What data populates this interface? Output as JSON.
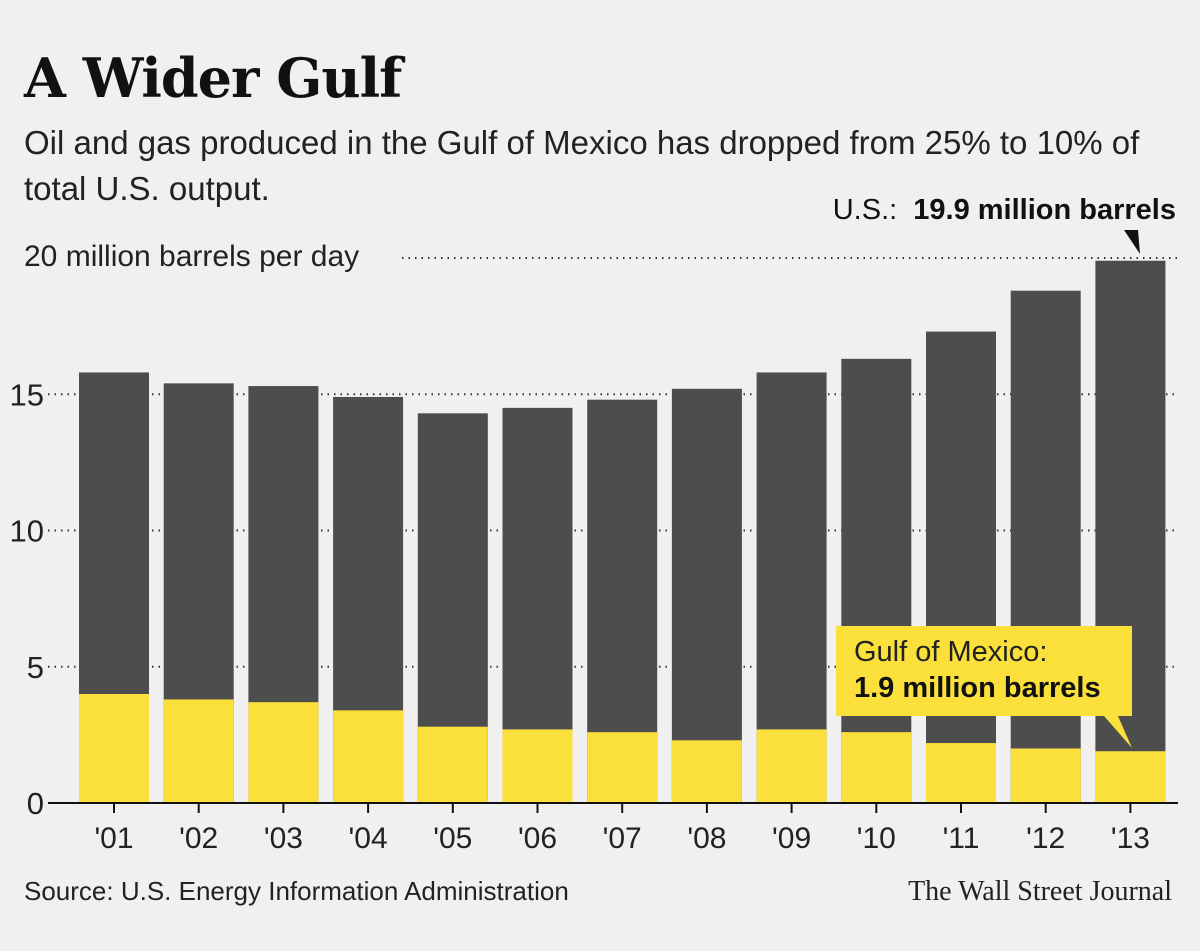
{
  "header": {
    "title": "A Wider Gulf",
    "subtitle": "Oil and gas produced in the Gulf of Mexico has dropped from 25% to 10% of total U.S. output."
  },
  "footer": {
    "source": "Source: U.S. Energy Information Administration",
    "credit": "The Wall Street Journal"
  },
  "colors": {
    "us_total": "#4d4d4d",
    "gulf": "#fbe03b",
    "background": "#f0f0f0",
    "text": "#111111"
  },
  "chart_data": {
    "type": "bar",
    "stacked_overlay": true,
    "title": "A Wider Gulf",
    "ylabel": "20 million barrels per day",
    "ylim": [
      0,
      20
    ],
    "yticks": [
      {
        "value": 0,
        "label": "0"
      },
      {
        "value": 5,
        "label": "5"
      },
      {
        "value": 10,
        "label": "10"
      },
      {
        "value": 15,
        "label": "15"
      },
      {
        "value": 20,
        "label": "20 million barrels per day"
      }
    ],
    "categories": [
      "'01",
      "'02",
      "'03",
      "'04",
      "'05",
      "'06",
      "'07",
      "'08",
      "'09",
      "'10",
      "'11",
      "'12",
      "'13"
    ],
    "series": [
      {
        "name": "U.S.",
        "values": [
          15.8,
          15.4,
          15.3,
          14.9,
          14.3,
          14.5,
          14.8,
          15.2,
          15.8,
          16.3,
          17.3,
          18.8,
          19.9
        ]
      },
      {
        "name": "Gulf of Mexico",
        "values": [
          4.0,
          3.8,
          3.7,
          3.4,
          2.8,
          2.7,
          2.6,
          2.3,
          2.7,
          2.6,
          2.2,
          2.0,
          1.9
        ]
      }
    ],
    "annotations": {
      "us": {
        "prefix": "U.S.:",
        "value": "19.9 million barrels"
      },
      "gulf": {
        "line1": "Gulf of Mexico:",
        "line2": "1.9 million barrels"
      }
    }
  }
}
